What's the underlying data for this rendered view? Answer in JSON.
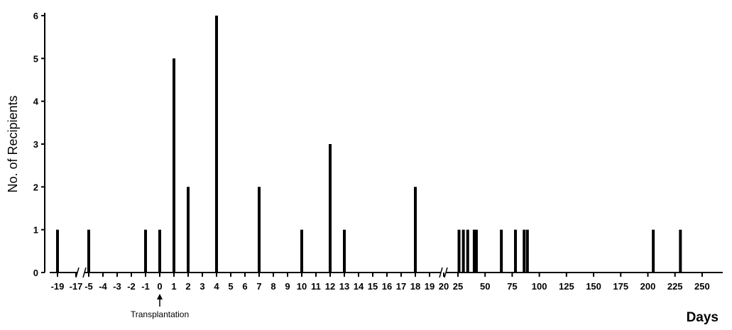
{
  "chart_data": {
    "type": "bar",
    "xlabel": "Days",
    "ylabel": "No. of Recipients",
    "ylim": [
      0,
      6
    ],
    "y_ticks": [
      "0",
      "1",
      "2",
      "3",
      "4",
      "5",
      "6"
    ],
    "annotation": {
      "text": "Transplantation",
      "x": 0
    },
    "segments": [
      {
        "axis_ticks": [
          "-19",
          "-17"
        ],
        "tick_values": [
          -19,
          -17
        ],
        "bars": [
          {
            "x": -19,
            "value": 1
          }
        ]
      },
      {
        "axis_ticks": [
          "-5",
          "-4",
          "-3",
          "-2",
          "-1",
          "0",
          "1",
          "2",
          "3",
          "4",
          "5",
          "6",
          "7",
          "8",
          "9",
          "10",
          "11",
          "12",
          "13",
          "14",
          "15",
          "16",
          "17",
          "18",
          "19",
          "20"
        ],
        "tick_values": [
          -5,
          -4,
          -3,
          -2,
          -1,
          0,
          1,
          2,
          3,
          4,
          5,
          6,
          7,
          8,
          9,
          10,
          11,
          12,
          13,
          14,
          15,
          16,
          17,
          18,
          19,
          20
        ],
        "bars": [
          {
            "x": -5,
            "value": 1
          },
          {
            "x": -1,
            "value": 1
          },
          {
            "x": 0,
            "value": 1
          },
          {
            "x": 1,
            "value": 5
          },
          {
            "x": 2,
            "value": 2
          },
          {
            "x": 4,
            "value": 6
          },
          {
            "x": 7,
            "value": 2
          },
          {
            "x": 10,
            "value": 1
          },
          {
            "x": 12,
            "value": 3
          },
          {
            "x": 13,
            "value": 1
          },
          {
            "x": 18,
            "value": 2
          }
        ]
      },
      {
        "axis_ticks": [
          "25",
          "50",
          "75",
          "100",
          "125",
          "150",
          "175",
          "200",
          "225",
          "250"
        ],
        "tick_values": [
          25,
          50,
          75,
          100,
          125,
          150,
          175,
          200,
          225,
          250
        ],
        "bars": [
          {
            "x": 26,
            "value": 1
          },
          {
            "x": 30,
            "value": 1
          },
          {
            "x": 34,
            "value": 1
          },
          {
            "x": 40,
            "value": 1
          },
          {
            "x": 42,
            "value": 1
          },
          {
            "x": 65,
            "value": 1
          },
          {
            "x": 78,
            "value": 1
          },
          {
            "x": 86,
            "value": 1
          },
          {
            "x": 89,
            "value": 1
          },
          {
            "x": 205,
            "value": 1
          },
          {
            "x": 230,
            "value": 1
          }
        ]
      }
    ],
    "colors": {
      "bar": "#000000",
      "axis": "#000000"
    }
  }
}
